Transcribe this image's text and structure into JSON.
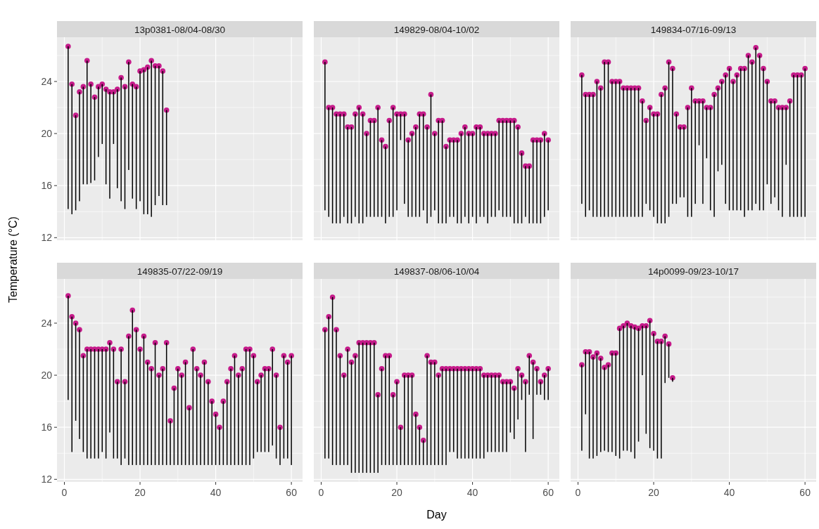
{
  "chart_data": [
    {
      "type": "bar",
      "title": "13p0381-08/04-08/30",
      "ylabel": "Temperature (°C)",
      "x": [
        1,
        2,
        3,
        4,
        5,
        6,
        7,
        8,
        9,
        10,
        11,
        12,
        13,
        14,
        15,
        16,
        17,
        18,
        19,
        20,
        21,
        22,
        23,
        24,
        25,
        26,
        27
      ],
      "series": [
        {
          "type": "bar",
          "color": "#000000",
          "base": [
            14.2,
            13.8,
            14.1,
            14.8,
            16.1,
            16.1,
            16.2,
            16.4,
            18.2,
            19.2,
            16.1,
            15.0,
            19.2,
            15.8,
            14.8,
            14.2,
            17.2,
            15.0,
            14.2,
            14.8,
            13.8,
            13.8,
            13.6,
            14.5,
            15.2,
            14.5,
            14.5
          ],
          "values": [
            12.5,
            10.0,
            7.3,
            8.4,
            7.5,
            9.5,
            7.6,
            6.4,
            5.4,
            4.6,
            7.3,
            8.2,
            4.0,
            7.6,
            9.5,
            9.4,
            8.3,
            8.8,
            9.4,
            10.0,
            11.1,
            11.3,
            12.0,
            10.7,
            10.0,
            10.3,
            7.3
          ]
        },
        {
          "type": "scatter",
          "color": "#c51b8a",
          "values": [
            26.7,
            23.8,
            21.4,
            23.2,
            23.6,
            25.6,
            23.8,
            22.8,
            23.6,
            23.8,
            23.4,
            23.2,
            23.2,
            23.4,
            24.3,
            23.6,
            25.5,
            23.8,
            23.6,
            24.8,
            24.9,
            25.1,
            25.6,
            25.2,
            25.2,
            24.8,
            21.8
          ]
        }
      ],
      "marker": "circle",
      "grid": true,
      "tick_labels": "y",
      "xlim": [
        -1.95,
        62.95
      ],
      "ylim": [
        11.8,
        27.4
      ],
      "xticks": [
        0,
        {
          "value": 10,
          "label": null
        },
        20,
        {
          "value": 30,
          "label": null
        },
        40,
        {
          "value": 50,
          "label": null
        },
        60
      ],
      "yticks": [
        12,
        {
          "value": 14,
          "label": null
        },
        16,
        {
          "value": 18,
          "label": null
        },
        20,
        {
          "value": 22,
          "label": null
        },
        24,
        {
          "value": 26,
          "label": null
        }
      ]
    },
    {
      "type": "bar",
      "title": "149829-08/04-10/02",
      "x": [
        1,
        2,
        3,
        4,
        5,
        6,
        7,
        8,
        9,
        10,
        11,
        12,
        13,
        14,
        15,
        16,
        17,
        18,
        19,
        20,
        21,
        22,
        23,
        24,
        25,
        26,
        27,
        28,
        29,
        30,
        31,
        32,
        33,
        34,
        35,
        36,
        37,
        38,
        39,
        40,
        41,
        42,
        43,
        44,
        45,
        46,
        47,
        48,
        49,
        50,
        51,
        52,
        53,
        54,
        55,
        56,
        57,
        58,
        59,
        60
      ],
      "series": [
        {
          "type": "bar",
          "color": "#000000",
          "base": [
            14.1,
            13.6,
            13.1,
            13.1,
            13.1,
            13.6,
            13.1,
            13.1,
            13.6,
            13.1,
            13.1,
            13.6,
            13.6,
            13.6,
            13.6,
            13.6,
            13.1,
            13.6,
            13.6,
            14.1,
            19.5,
            14.6,
            13.6,
            13.6,
            13.6,
            13.6,
            14.1,
            13.1,
            13.6,
            14.1,
            13.1,
            13.1,
            13.1,
            13.6,
            13.6,
            13.1,
            13.1,
            13.6,
            13.1,
            13.6,
            13.1,
            13.6,
            13.6,
            13.1,
            13.6,
            13.6,
            14.1,
            13.6,
            13.6,
            13.6,
            13.1,
            13.1,
            13.1,
            13.6,
            13.1,
            13.1,
            13.1,
            13.1,
            13.6,
            14.1
          ],
          "values": [
            11.4,
            8.4,
            8.9,
            8.4,
            8.4,
            7.9,
            7.4,
            7.4,
            7.9,
            8.9,
            8.4,
            6.4,
            7.4,
            7.4,
            8.4,
            5.9,
            5.9,
            7.4,
            8.4,
            7.4,
            2.0,
            6.9,
            5.9,
            6.4,
            6.9,
            7.9,
            7.4,
            7.4,
            9.4,
            5.9,
            7.9,
            7.9,
            5.9,
            5.9,
            5.9,
            6.4,
            6.9,
            6.9,
            6.9,
            6.4,
            7.4,
            6.9,
            6.4,
            6.9,
            6.4,
            6.4,
            6.9,
            7.4,
            7.4,
            7.4,
            7.9,
            7.4,
            5.4,
            3.9,
            4.4,
            6.4,
            6.4,
            6.4,
            6.4,
            5.4
          ]
        },
        {
          "type": "scatter",
          "color": "#c51b8a",
          "values": [
            25.5,
            22.0,
            22.0,
            21.5,
            21.5,
            21.5,
            20.5,
            20.5,
            21.5,
            22.0,
            21.5,
            20.0,
            21.0,
            21.0,
            22.0,
            19.5,
            19.0,
            21.0,
            22.0,
            21.5,
            21.5,
            21.5,
            19.5,
            20.0,
            20.5,
            21.5,
            21.5,
            20.5,
            23.0,
            20.0,
            21.0,
            21.0,
            19.0,
            19.5,
            19.5,
            19.5,
            20.0,
            20.5,
            20.0,
            20.0,
            20.5,
            20.5,
            20.0,
            20.0,
            20.0,
            20.0,
            21.0,
            21.0,
            21.0,
            21.0,
            21.0,
            20.5,
            18.5,
            17.5,
            17.5,
            19.5,
            19.5,
            19.5,
            20.0,
            19.5
          ]
        }
      ],
      "marker": "circle",
      "grid": true,
      "tick_labels": false,
      "xlim": [
        -1.95,
        62.95
      ],
      "ylim": [
        11.8,
        27.4
      ],
      "xticks": [
        0,
        {
          "value": 10,
          "label": null
        },
        20,
        {
          "value": 30,
          "label": null
        },
        40,
        {
          "value": 50,
          "label": null
        },
        60
      ],
      "yticks": [
        12,
        {
          "value": 14,
          "label": null
        },
        16,
        {
          "value": 18,
          "label": null
        },
        20,
        {
          "value": 22,
          "label": null
        },
        24,
        {
          "value": 26,
          "label": null
        }
      ]
    },
    {
      "type": "bar",
      "title": "149834-07/16-09/13",
      "x": [
        1,
        2,
        3,
        4,
        5,
        6,
        7,
        8,
        9,
        10,
        11,
        12,
        13,
        14,
        15,
        16,
        17,
        18,
        19,
        20,
        21,
        22,
        23,
        24,
        25,
        26,
        27,
        28,
        29,
        30,
        31,
        32,
        33,
        34,
        35,
        36,
        37,
        38,
        39,
        40,
        41,
        42,
        43,
        44,
        45,
        46,
        47,
        48,
        49,
        50,
        51,
        52,
        53,
        54,
        55,
        56,
        57,
        58,
        59,
        60
      ],
      "series": [
        {
          "type": "bar",
          "color": "#000000",
          "base": [
            14.6,
            13.6,
            14.1,
            13.6,
            13.6,
            13.6,
            13.6,
            13.6,
            13.6,
            13.6,
            13.6,
            13.6,
            13.6,
            13.6,
            13.6,
            13.6,
            13.6,
            14.6,
            14.1,
            13.6,
            13.1,
            13.1,
            13.1,
            13.6,
            14.6,
            14.6,
            15.1,
            15.1,
            13.6,
            13.6,
            14.6,
            19.1,
            14.6,
            18.1,
            14.1,
            13.6,
            17.1,
            17.6,
            14.6,
            14.1,
            14.1,
            14.1,
            14.1,
            13.6,
            14.1,
            14.1,
            14.6,
            14.1,
            14.1,
            16.1,
            14.6,
            15.1,
            14.1,
            13.6,
            17.6,
            13.6,
            13.6,
            13.6,
            13.6,
            13.6
          ],
          "values": [
            9.9,
            9.4,
            8.9,
            9.4,
            10.4,
            9.9,
            11.9,
            11.9,
            10.4,
            10.4,
            10.4,
            9.9,
            9.9,
            9.9,
            9.9,
            9.9,
            8.9,
            6.4,
            7.9,
            7.9,
            8.4,
            9.9,
            10.4,
            11.9,
            10.4,
            6.9,
            5.4,
            5.4,
            8.4,
            9.9,
            7.9,
            3.4,
            7.9,
            3.9,
            7.9,
            9.4,
            6.4,
            6.4,
            9.9,
            10.9,
            9.9,
            10.4,
            10.9,
            11.4,
            11.9,
            11.4,
            12.0,
            11.9,
            10.9,
            7.9,
            7.9,
            7.4,
            7.9,
            8.4,
            4.4,
            8.9,
            10.9,
            10.9,
            10.9,
            11.4
          ]
        },
        {
          "type": "scatter",
          "color": "#c51b8a",
          "values": [
            24.5,
            23.0,
            23.0,
            23.0,
            24.0,
            23.5,
            25.5,
            25.5,
            24.0,
            24.0,
            24.0,
            23.5,
            23.5,
            23.5,
            23.5,
            23.5,
            22.5,
            21.0,
            22.0,
            21.5,
            21.5,
            23.0,
            23.5,
            25.5,
            25.0,
            21.5,
            20.5,
            20.5,
            22.0,
            23.5,
            22.5,
            22.5,
            22.5,
            22.0,
            22.0,
            23.0,
            23.5,
            24.0,
            24.5,
            25.0,
            24.0,
            24.5,
            25.0,
            25.0,
            26.0,
            25.5,
            26.6,
            26.0,
            25.0,
            24.0,
            22.5,
            22.5,
            22.0,
            22.0,
            22.0,
            22.5,
            24.5,
            24.5,
            24.5,
            25.0
          ]
        }
      ],
      "marker": "circle",
      "grid": true,
      "tick_labels": false,
      "xlim": [
        -1.95,
        62.95
      ],
      "ylim": [
        11.8,
        27.4
      ],
      "xticks": [
        0,
        {
          "value": 10,
          "label": null
        },
        20,
        {
          "value": 30,
          "label": null
        },
        40,
        {
          "value": 50,
          "label": null
        },
        60
      ],
      "yticks": [
        12,
        {
          "value": 14,
          "label": null
        },
        16,
        {
          "value": 18,
          "label": null
        },
        20,
        {
          "value": 22,
          "label": null
        },
        24,
        {
          "value": 26,
          "label": null
        }
      ]
    },
    {
      "type": "bar",
      "title": "149835-07/22-09/19",
      "x": [
        1,
        2,
        3,
        4,
        5,
        6,
        7,
        8,
        9,
        10,
        11,
        12,
        13,
        14,
        15,
        16,
        17,
        18,
        19,
        20,
        21,
        22,
        23,
        24,
        25,
        26,
        27,
        28,
        29,
        30,
        31,
        32,
        33,
        34,
        35,
        36,
        37,
        38,
        39,
        40,
        41,
        42,
        43,
        44,
        45,
        46,
        47,
        48,
        49,
        50,
        51,
        52,
        53,
        54,
        55,
        56,
        57,
        58,
        59,
        60
      ],
      "series": [
        {
          "type": "bar",
          "color": "#000000",
          "base": [
            18.1,
            14.1,
            16.5,
            15.1,
            14.1,
            13.6,
            13.6,
            13.6,
            13.6,
            14.1,
            13.6,
            15.6,
            13.6,
            13.6,
            13.1,
            13.6,
            13.1,
            13.1,
            13.1,
            13.1,
            13.1,
            13.1,
            13.1,
            13.1,
            13.1,
            13.1,
            13.1,
            13.1,
            13.1,
            13.1,
            13.1,
            13.1,
            13.1,
            13.1,
            13.1,
            13.1,
            13.1,
            13.1,
            13.1,
            13.1,
            13.1,
            13.1,
            13.1,
            13.1,
            13.1,
            13.1,
            13.1,
            13.1,
            13.1,
            13.6,
            14.1,
            14.1,
            14.1,
            14.1,
            14.6,
            13.6,
            13.1,
            13.6,
            13.6,
            13.1
          ],
          "values": [
            8.0,
            10.4,
            7.5,
            8.4,
            7.4,
            8.4,
            8.4,
            8.4,
            8.4,
            7.9,
            8.4,
            6.9,
            8.4,
            5.9,
            8.9,
            5.9,
            9.9,
            11.9,
            10.4,
            8.9,
            9.9,
            7.9,
            7.4,
            9.4,
            6.9,
            7.4,
            9.4,
            3.4,
            5.9,
            7.4,
            6.9,
            7.9,
            4.4,
            8.9,
            7.4,
            6.9,
            7.9,
            6.4,
            4.9,
            3.9,
            2.9,
            4.9,
            6.4,
            7.4,
            8.4,
            6.9,
            7.4,
            8.9,
            8.9,
            7.9,
            5.4,
            5.9,
            6.4,
            6.4,
            7.4,
            6.4,
            2.9,
            7.9,
            7.4,
            8.4
          ]
        },
        {
          "type": "scatter",
          "color": "#c51b8a",
          "values": [
            26.1,
            24.5,
            24.0,
            23.5,
            21.5,
            22.0,
            22.0,
            22.0,
            22.0,
            22.0,
            22.0,
            22.5,
            22.0,
            19.5,
            22.0,
            19.5,
            23.0,
            25.0,
            23.5,
            22.0,
            23.0,
            21.0,
            20.5,
            22.5,
            20.0,
            20.5,
            22.5,
            16.5,
            19.0,
            20.5,
            20.0,
            21.0,
            17.5,
            22.0,
            20.5,
            20.0,
            21.0,
            19.5,
            18.0,
            17.0,
            16.0,
            18.0,
            19.5,
            20.5,
            21.5,
            20.0,
            20.5,
            22.0,
            22.0,
            21.5,
            19.5,
            20.0,
            20.5,
            20.5,
            22.0,
            20.0,
            16.0,
            21.5,
            21.0,
            21.5
          ]
        }
      ],
      "marker": "circle",
      "grid": true,
      "xlim": [
        -1.95,
        62.95
      ],
      "ylim": [
        11.8,
        27.4
      ],
      "xticks": [
        0,
        {
          "value": 10,
          "label": null
        },
        20,
        {
          "value": 30,
          "label": null
        },
        40,
        {
          "value": 50,
          "label": null
        },
        60
      ],
      "yticks": [
        12,
        {
          "value": 14,
          "label": null
        },
        16,
        {
          "value": 18,
          "label": null
        },
        20,
        {
          "value": 22,
          "label": null
        },
        24,
        {
          "value": 26,
          "label": null
        }
      ]
    },
    {
      "type": "bar",
      "title": "149837-08/06-10/04",
      "xlabel": "Day",
      "x": [
        1,
        2,
        3,
        4,
        5,
        6,
        7,
        8,
        9,
        10,
        11,
        12,
        13,
        14,
        15,
        16,
        17,
        18,
        19,
        20,
        21,
        22,
        23,
        24,
        25,
        26,
        27,
        28,
        29,
        30,
        31,
        32,
        33,
        34,
        35,
        36,
        37,
        38,
        39,
        40,
        41,
        42,
        43,
        44,
        45,
        46,
        47,
        48,
        49,
        50,
        51,
        52,
        53,
        54,
        55,
        56,
        57,
        58,
        59,
        60
      ],
      "series": [
        {
          "type": "bar",
          "color": "#000000",
          "base": [
            13.6,
            13.6,
            13.1,
            13.1,
            13.1,
            13.1,
            13.1,
            12.5,
            12.5,
            12.5,
            12.5,
            12.5,
            12.5,
            12.5,
            12.5,
            13.1,
            13.1,
            13.1,
            13.1,
            13.1,
            13.1,
            13.1,
            13.1,
            13.1,
            13.1,
            13.1,
            13.1,
            13.1,
            13.1,
            13.1,
            13.1,
            13.1,
            13.1,
            14.1,
            14.1,
            13.6,
            13.6,
            13.6,
            13.6,
            13.6,
            13.6,
            13.6,
            13.6,
            14.1,
            14.1,
            14.1,
            14.1,
            14.1,
            14.1,
            15.6,
            15.1,
            16.6,
            18.1,
            14.1,
            18.5,
            15.1,
            18.5,
            18.5,
            18.1,
            18.1
          ],
          "values": [
            9.9,
            10.9,
            12.9,
            10.4,
            8.4,
            6.9,
            8.9,
            8.5,
            9.0,
            10.0,
            10.0,
            10.0,
            10.0,
            10.0,
            6.0,
            7.4,
            8.4,
            8.4,
            5.4,
            6.4,
            2.9,
            6.9,
            6.9,
            6.9,
            3.9,
            2.9,
            1.9,
            8.4,
            7.9,
            7.9,
            6.9,
            7.4,
            7.4,
            6.4,
            6.4,
            6.9,
            6.9,
            6.9,
            6.9,
            6.9,
            6.9,
            6.9,
            6.4,
            5.9,
            5.9,
            5.9,
            5.9,
            5.4,
            5.4,
            3.9,
            3.9,
            3.9,
            1.9,
            5.4,
            3.0,
            5.9,
            2.0,
            1.0,
            1.9,
            2.4
          ]
        },
        {
          "type": "scatter",
          "color": "#c51b8a",
          "values": [
            23.5,
            24.5,
            26.0,
            23.5,
            21.5,
            20.0,
            22.0,
            21.0,
            21.5,
            22.5,
            22.5,
            22.5,
            22.5,
            22.5,
            18.5,
            20.5,
            21.5,
            21.5,
            18.5,
            19.5,
            16.0,
            20.0,
            20.0,
            20.0,
            17.0,
            16.0,
            15.0,
            21.5,
            21.0,
            21.0,
            20.0,
            20.5,
            20.5,
            20.5,
            20.5,
            20.5,
            20.5,
            20.5,
            20.5,
            20.5,
            20.5,
            20.5,
            20.0,
            20.0,
            20.0,
            20.0,
            20.0,
            19.5,
            19.5,
            19.5,
            19.0,
            20.5,
            20.0,
            19.5,
            21.5,
            21.0,
            20.5,
            19.5,
            20.0,
            20.5
          ]
        }
      ],
      "marker": "circle",
      "grid": true,
      "tick_labels": "x",
      "xlim": [
        -1.95,
        62.95
      ],
      "ylim": [
        11.8,
        27.4
      ],
      "xticks": [
        0,
        {
          "value": 10,
          "label": null
        },
        20,
        {
          "value": 30,
          "label": null
        },
        40,
        {
          "value": 50,
          "label": null
        },
        60
      ],
      "yticks": [
        12,
        {
          "value": 14,
          "label": null
        },
        16,
        {
          "value": 18,
          "label": null
        },
        20,
        {
          "value": 22,
          "label": null
        },
        24,
        {
          "value": 26,
          "label": null
        }
      ]
    },
    {
      "type": "bar",
      "title": "14p0099-09/23-10/17",
      "x": [
        1,
        2,
        3,
        4,
        5,
        6,
        7,
        8,
        9,
        10,
        11,
        12,
        13,
        14,
        15,
        16,
        17,
        18,
        19,
        20,
        21,
        22,
        23,
        24,
        25
      ],
      "series": [
        {
          "type": "bar",
          "color": "#000000",
          "base": [
            14.2,
            17.0,
            13.6,
            13.6,
            13.8,
            14.1,
            14.2,
            14.1,
            14.1,
            13.8,
            13.6,
            14.2,
            14.2,
            14.1,
            13.6,
            14.9,
            20.0,
            15.5,
            14.4,
            14.2,
            13.6,
            13.6,
            19.4,
            19.8,
            19.5
          ],
          "values": [
            6.6,
            4.8,
            8.2,
            7.8,
            7.9,
            7.2,
            6.4,
            6.7,
            7.6,
            7.9,
            10.0,
            9.6,
            9.8,
            9.7,
            10.1,
            8.7,
            3.8,
            8.3,
            9.8,
            9.0,
            9.0,
            9.0,
            3.6,
            2.6,
            0.3
          ]
        },
        {
          "type": "scatter",
          "color": "#c51b8a",
          "values": [
            20.8,
            21.8,
            21.8,
            21.4,
            21.7,
            21.3,
            20.6,
            20.8,
            21.7,
            21.7,
            23.6,
            23.8,
            24.0,
            23.8,
            23.7,
            23.6,
            23.8,
            23.8,
            24.2,
            23.2,
            22.6,
            22.6,
            23.0,
            22.4,
            19.8
          ]
        }
      ],
      "marker": "circle",
      "grid": true,
      "tick_labels": "x",
      "xlim": [
        -1.95,
        62.95
      ],
      "ylim": [
        11.8,
        27.4
      ],
      "xticks": [
        0,
        {
          "value": 10,
          "label": null
        },
        20,
        {
          "value": 30,
          "label": null
        },
        40,
        {
          "value": 50,
          "label": null
        },
        60
      ],
      "yticks": [
        12,
        {
          "value": 14,
          "label": null
        },
        16,
        {
          "value": 18,
          "label": null
        },
        20,
        {
          "value": 22,
          "label": null
        },
        24,
        {
          "value": 26,
          "label": null
        }
      ]
    }
  ]
}
